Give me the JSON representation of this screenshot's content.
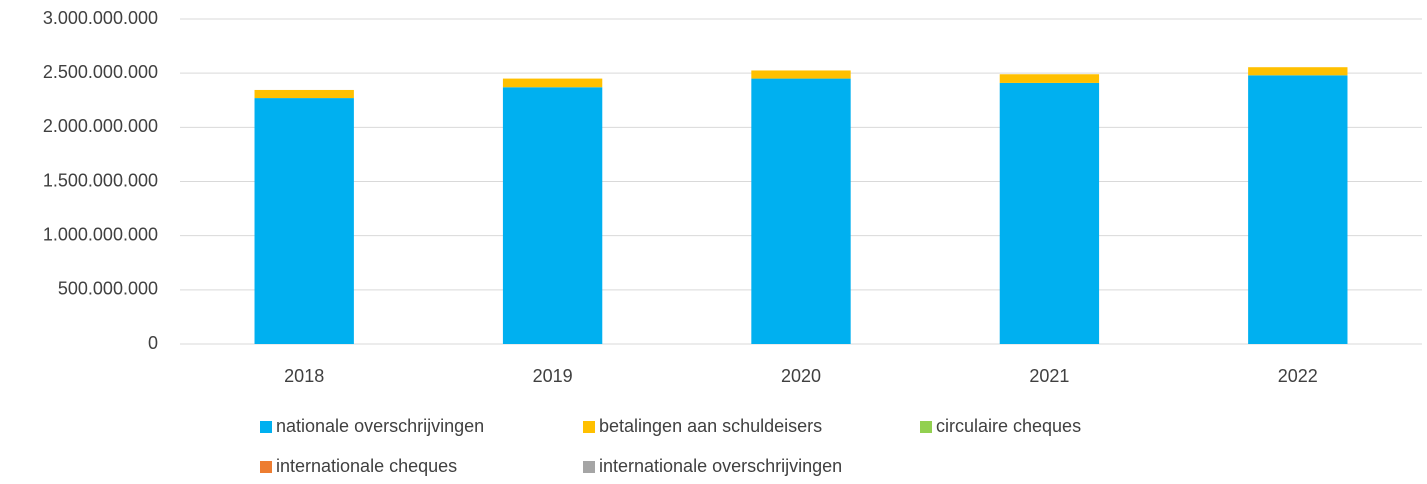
{
  "chart_data": {
    "type": "stacked_bar",
    "categories": [
      "2018",
      "2019",
      "2020",
      "2021",
      "2022"
    ],
    "series": [
      {
        "name": "nationale overschrijvingen",
        "color": "#00b0f0",
        "values": [
          2270000000,
          2370000000,
          2450000000,
          2410000000,
          2480000000
        ]
      },
      {
        "name": "betalingen aan schuldeisers",
        "color": "#ffc000",
        "values": [
          75000000,
          80000000,
          75000000,
          80000000,
          75000000
        ]
      },
      {
        "name": "circulaire cheques",
        "color": "#92d050",
        "values": [
          0,
          0,
          0,
          0,
          0
        ]
      },
      {
        "name": "internationale cheques",
        "color": "#ed7d31",
        "values": [
          0,
          0,
          0,
          0,
          0
        ]
      },
      {
        "name": "internationale overschrijvingen",
        "color": "#a5a5a5",
        "values": [
          0,
          0,
          0,
          0,
          0
        ]
      }
    ],
    "ylim": [
      0,
      3000000000
    ],
    "yticks": [
      0,
      {
        "value": 500000000,
        "label": "500.000.000"
      },
      {
        "value": 1000000000,
        "label": "1.000.000.000"
      },
      {
        "value": 1500000000,
        "label": "1.500.000.000"
      },
      {
        "value": 2000000000,
        "label": "2.000.000.000"
      },
      {
        "value": 2500000000,
        "label": "2.500.000.000"
      },
      {
        "value": 3000000000,
        "label": "3.000.000.000"
      }
    ],
    "grid": true
  }
}
